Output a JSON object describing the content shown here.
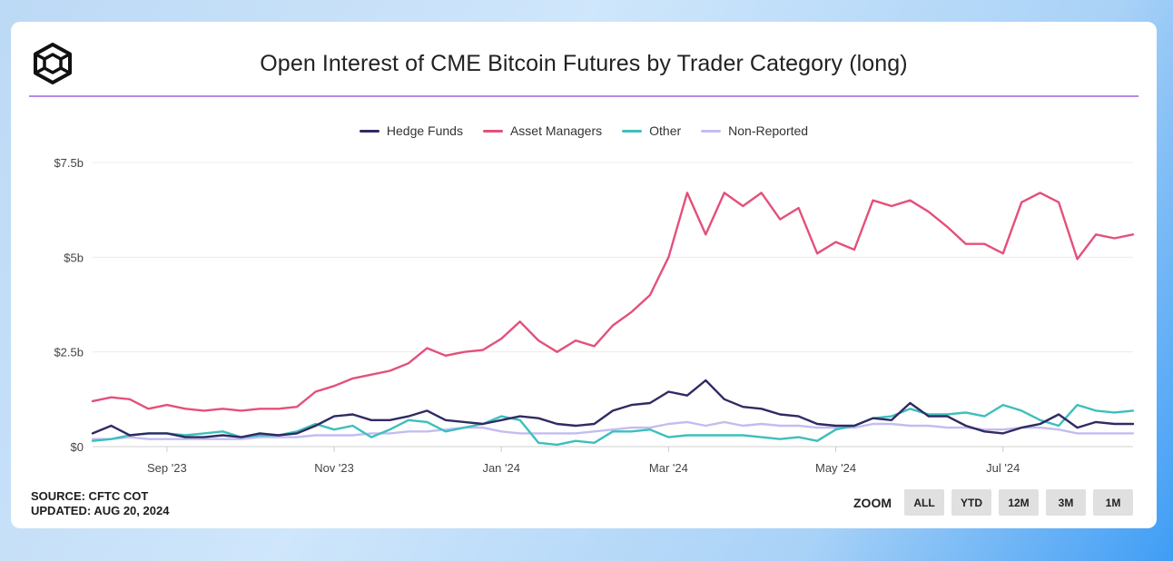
{
  "header": {
    "title": "Open Interest of CME Bitcoin Futures by Trader Category (long)",
    "logo_icon": "cube-logo-icon"
  },
  "footer": {
    "source": "SOURCE: CFTC COT",
    "updated": "UPDATED: AUG 20, 2024"
  },
  "zoom": {
    "label": "ZOOM",
    "buttons": [
      "ALL",
      "YTD",
      "12M",
      "3M",
      "1M"
    ]
  },
  "colors": {
    "accent": "#b589e8",
    "hedge": "#2f2b63",
    "asset": "#e4507a",
    "other": "#3dbfbc",
    "nonrep": "#c3bdf0"
  },
  "chart_data": {
    "type": "line",
    "title": "Open Interest of CME Bitcoin Futures by Trader Category (long)",
    "xlabel": "",
    "ylabel": "",
    "ylim": [
      0,
      7.5
    ],
    "y_ticks": [
      0,
      2.5,
      5,
      7.5
    ],
    "y_tick_labels": [
      "$0",
      "$2.5b",
      "$5b",
      "$7.5b"
    ],
    "x_tick_labels": [
      "Sep '23",
      "Nov '23",
      "Jan '24",
      "Mar '24",
      "May '24",
      "Jul '24"
    ],
    "x_tick_positions": [
      4,
      13,
      22,
      31,
      40,
      49
    ],
    "x": [
      0,
      1,
      2,
      3,
      4,
      5,
      6,
      7,
      8,
      9,
      10,
      11,
      12,
      13,
      14,
      15,
      16,
      17,
      18,
      19,
      20,
      21,
      22,
      23,
      24,
      25,
      26,
      27,
      28,
      29,
      30,
      31,
      32,
      33,
      34,
      35,
      36,
      37,
      38,
      39,
      40,
      41,
      42,
      43,
      44,
      45,
      46,
      47,
      48,
      49,
      50,
      51,
      52,
      53,
      54,
      55,
      56
    ],
    "legend_position": "top-center",
    "series": [
      {
        "name": "Hedge Funds",
        "color": "#2f2b63",
        "values": [
          0.35,
          0.55,
          0.3,
          0.35,
          0.35,
          0.25,
          0.25,
          0.3,
          0.25,
          0.35,
          0.3,
          0.35,
          0.55,
          0.8,
          0.85,
          0.7,
          0.7,
          0.8,
          0.95,
          0.7,
          0.65,
          0.6,
          0.7,
          0.8,
          0.75,
          0.6,
          0.55,
          0.6,
          0.95,
          1.1,
          1.15,
          1.45,
          1.35,
          1.75,
          1.25,
          1.05,
          1.0,
          0.85,
          0.8,
          0.6,
          0.55,
          0.55,
          0.75,
          0.7,
          1.15,
          0.8,
          0.8,
          0.55,
          0.4,
          0.35,
          0.5,
          0.6,
          0.85,
          0.5,
          0.65,
          0.6,
          0.6
        ]
      },
      {
        "name": "Asset Managers",
        "color": "#e4507a",
        "values": [
          1.2,
          1.3,
          1.25,
          1.0,
          1.1,
          1.0,
          0.95,
          1.0,
          0.95,
          1.0,
          1.0,
          1.05,
          1.45,
          1.6,
          1.8,
          1.9,
          2.0,
          2.2,
          2.6,
          2.4,
          2.5,
          2.55,
          2.85,
          3.3,
          2.8,
          2.5,
          2.8,
          2.65,
          3.2,
          3.55,
          4.0,
          5.0,
          6.7,
          5.6,
          6.7,
          6.35,
          6.7,
          6.0,
          6.3,
          5.1,
          5.4,
          5.2,
          6.5,
          6.35,
          6.5,
          6.2,
          5.8,
          5.35,
          5.35,
          5.1,
          6.45,
          6.7,
          6.45,
          4.95,
          5.6,
          5.5,
          5.6
        ]
      },
      {
        "name": "Other",
        "color": "#3dbfbc",
        "values": [
          0.15,
          0.2,
          0.3,
          0.35,
          0.35,
          0.3,
          0.35,
          0.4,
          0.25,
          0.3,
          0.3,
          0.4,
          0.6,
          0.45,
          0.55,
          0.25,
          0.45,
          0.7,
          0.65,
          0.4,
          0.5,
          0.6,
          0.8,
          0.7,
          0.1,
          0.05,
          0.15,
          0.1,
          0.4,
          0.4,
          0.45,
          0.25,
          0.3,
          0.3,
          0.3,
          0.3,
          0.25,
          0.2,
          0.25,
          0.15,
          0.45,
          0.55,
          0.75,
          0.8,
          1.0,
          0.85,
          0.85,
          0.9,
          0.8,
          1.1,
          0.95,
          0.7,
          0.55,
          1.1,
          0.95,
          0.9,
          0.95
        ]
      },
      {
        "name": "Non-Reported",
        "color": "#c3bdf0",
        "values": [
          0.2,
          0.2,
          0.25,
          0.2,
          0.2,
          0.2,
          0.2,
          0.2,
          0.2,
          0.25,
          0.25,
          0.25,
          0.3,
          0.3,
          0.3,
          0.35,
          0.35,
          0.4,
          0.4,
          0.45,
          0.5,
          0.5,
          0.4,
          0.35,
          0.35,
          0.35,
          0.35,
          0.4,
          0.45,
          0.5,
          0.5,
          0.6,
          0.65,
          0.55,
          0.65,
          0.55,
          0.6,
          0.55,
          0.55,
          0.5,
          0.5,
          0.5,
          0.6,
          0.6,
          0.55,
          0.55,
          0.5,
          0.5,
          0.45,
          0.45,
          0.5,
          0.5,
          0.45,
          0.35,
          0.35,
          0.35,
          0.35
        ]
      }
    ]
  }
}
